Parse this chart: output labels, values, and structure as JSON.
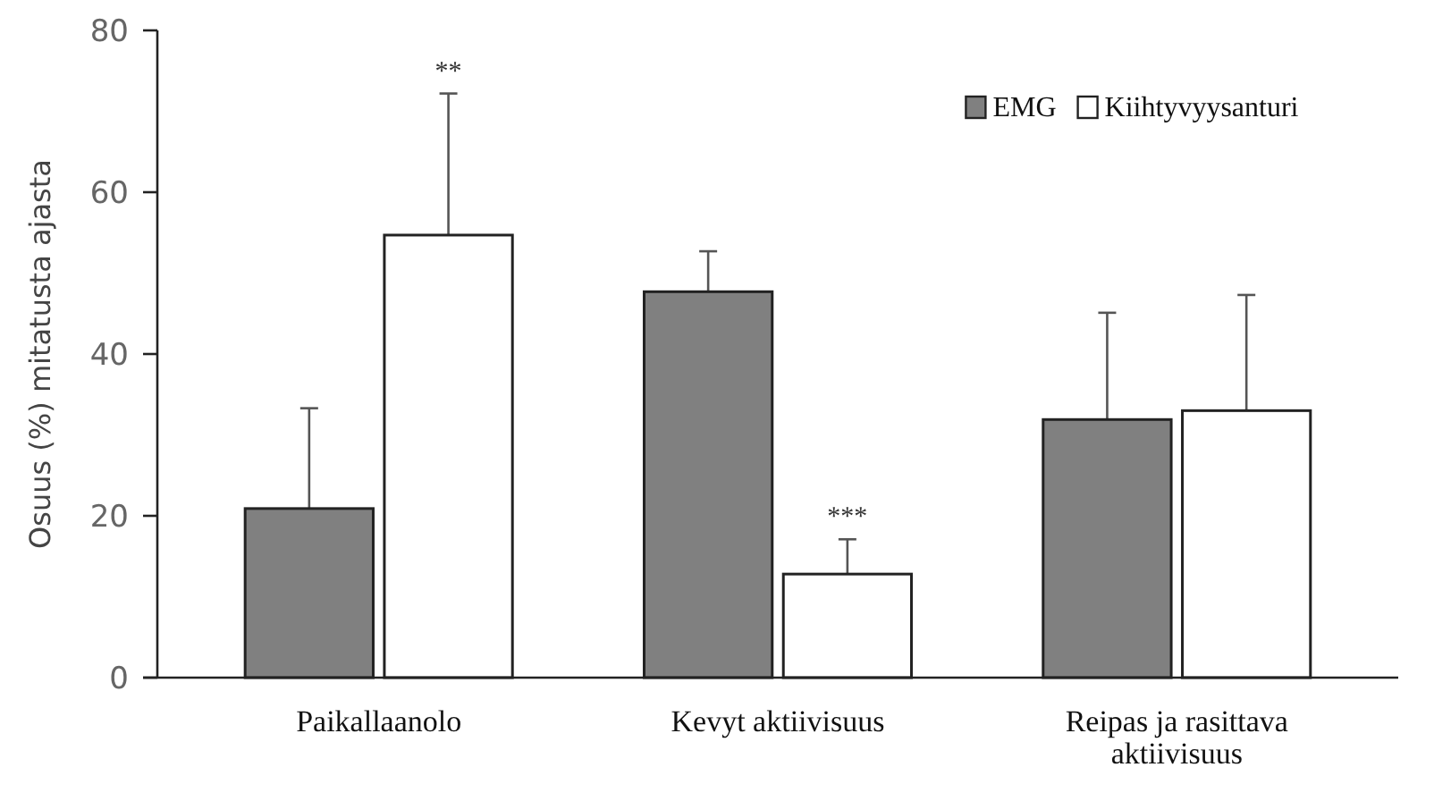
{
  "chart_data": {
    "type": "bar",
    "ylabel": "Osuus (%) mitatusta ajasta",
    "categories": [
      "Paikallaanolo",
      "Kevyt aktiivisuus",
      "Reipas ja rasittava aktiivisuus"
    ],
    "series": [
      {
        "name": "EMG",
        "color": "#808080",
        "values": [
          20.9,
          47.7,
          31.9
        ],
        "errors": [
          12.4,
          5,
          13.2
        ]
      },
      {
        "name": "Kiihtyvyysanturi",
        "color": "#ffffff",
        "values": [
          54.7,
          12.8,
          33
        ],
        "errors": [
          17.5,
          4.3,
          14.3
        ]
      }
    ],
    "ylim": [
      0,
      80
    ],
    "yticks": [
      0,
      20,
      40,
      60,
      80
    ],
    "grid": false,
    "legend": "top right",
    "annotations": [
      "**",
      "***"
    ]
  }
}
